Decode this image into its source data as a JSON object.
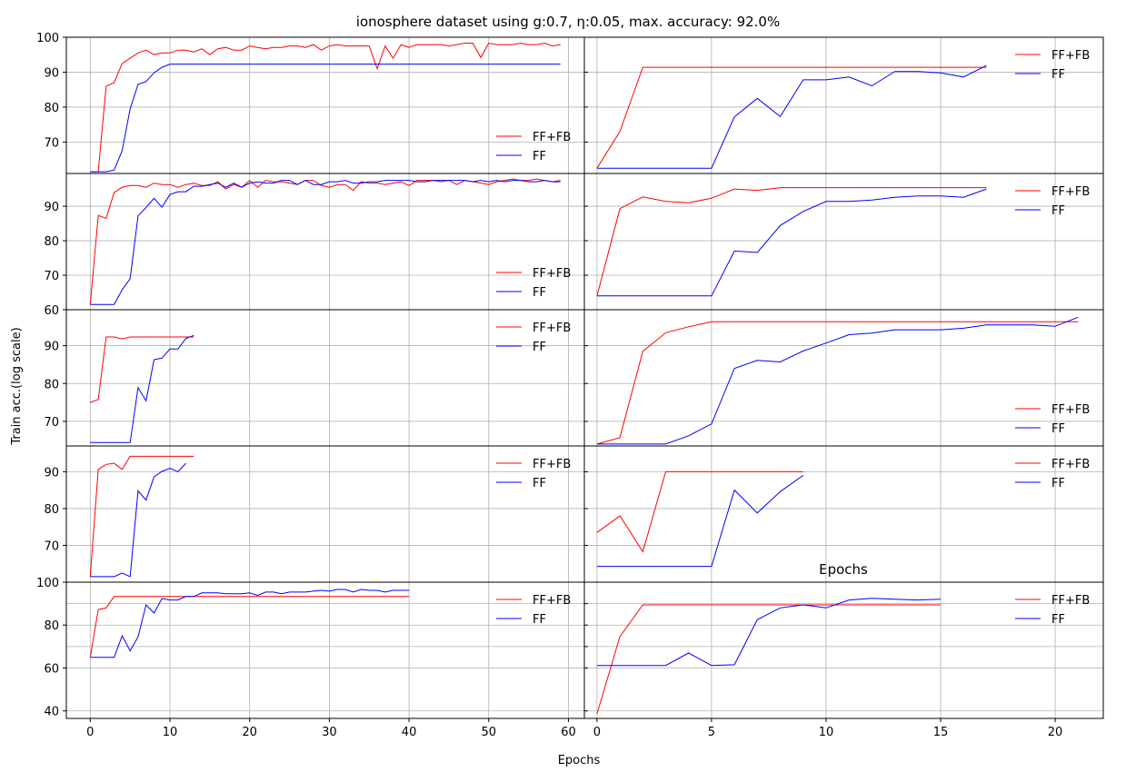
{
  "figure": {
    "title": "ionosphere dataset using g:0.7, η:0.05, max. accuracy: 92.0%",
    "xlabel": "Epochs",
    "ylabel": "Train acc.(log scale)",
    "stray_label": "Epochs",
    "colors": {
      "ff_fb": "#ff0000",
      "ff": "#0000ff",
      "grid": "#b0b0b0",
      "frame": "#000000"
    },
    "legend_labels": [
      "FF+FB",
      "FF"
    ]
  },
  "chart_data": [
    {
      "type": "line",
      "panel": "row1-left",
      "xlim": [
        -3,
        62
      ],
      "ylim": [
        61,
        100
      ],
      "yticks": [
        70,
        80,
        90,
        100
      ],
      "xticks": [
        0,
        10,
        20,
        30,
        40,
        50,
        60
      ],
      "grid": true,
      "legend": "lower-right",
      "series": [
        {
          "name": "FF+FB",
          "color": "#ff0000",
          "values": [
            61.5,
            61.5,
            86,
            87,
            92.5,
            94,
            95.5,
            96.3,
            95,
            95.5,
            95.5,
            96.3,
            96.3,
            95.8,
            96.7,
            95,
            96.7,
            97.1,
            96.3,
            96.3,
            97.5,
            97.1,
            96.7,
            97.1,
            97.1,
            97.5,
            97.5,
            97.1,
            97.9,
            96.3,
            97.5,
            97.9,
            97.5,
            97.5,
            97.5,
            97.5,
            91,
            97.5,
            94,
            97.9,
            97.1,
            97.9,
            97.9,
            97.9,
            97.9,
            97.5,
            97.9,
            98.3,
            98.3,
            94.2,
            98.3,
            97.9,
            97.9,
            97.9,
            98.3,
            97.9,
            97.9,
            98.3,
            97.5,
            97.9
          ]
        },
        {
          "name": "FF",
          "color": "#0000ff",
          "values": [
            61.5,
            61.5,
            61.5,
            62,
            67.5,
            79.5,
            86.5,
            87.3,
            89.8,
            91.4,
            92.3,
            92.3,
            92.3,
            92.3,
            92.3,
            92.3,
            92.3,
            92.3,
            92.3,
            92.3,
            92.3,
            92.3,
            92.3,
            92.3,
            92.3,
            92.3,
            92.3,
            92.3,
            92.3,
            92.3,
            92.3,
            92.3,
            92.3,
            92.3,
            92.3,
            92.3,
            92.3,
            92.3,
            92.3,
            92.3,
            92.3,
            92.3,
            92.3,
            92.3,
            92.3,
            92.3,
            92.3,
            92.3,
            92.3,
            92.3,
            92.3,
            92.3,
            92.3,
            92.3,
            92.3,
            92.3,
            92.3,
            92.3,
            92.3,
            92.3
          ]
        }
      ]
    },
    {
      "type": "line",
      "panel": "row1-right",
      "xlim": [
        -0.55,
        22.1
      ],
      "ylim": [
        61,
        100
      ],
      "yticks": [],
      "xticks": [
        0,
        5,
        10,
        15,
        20
      ],
      "grid": true,
      "legend": "upper-right",
      "series": [
        {
          "name": "FF+FB",
          "color": "#ff0000",
          "values": [
            62.5,
            73,
            91.4,
            91.4,
            91.4,
            91.4,
            91.4,
            91.4,
            91.4,
            91.4,
            91.4,
            91.4,
            91.4,
            91.4,
            91.4,
            91.4,
            91.4,
            91.4
          ]
        },
        {
          "name": "FF",
          "color": "#0000ff",
          "values": [
            62.5,
            62.5,
            62.5,
            62.5,
            62.5,
            62.5,
            77.2,
            82.5,
            77.3,
            87.8,
            87.8,
            88.6,
            86.1,
            90.2,
            90.2,
            89.8,
            88.6,
            91.9
          ]
        }
      ]
    },
    {
      "type": "line",
      "panel": "row2-left",
      "xlim": [
        -3,
        62
      ],
      "ylim": [
        60,
        99.5
      ],
      "yticks": [
        60,
        70,
        80,
        90
      ],
      "xticks": [
        0,
        10,
        20,
        30,
        40,
        50,
        60
      ],
      "grid": true,
      "legend": "lower-right",
      "series": [
        {
          "name": "FF+FB",
          "color": "#ff0000",
          "values": [
            61.5,
            87.3,
            86.5,
            94,
            95.5,
            96,
            96,
            95.5,
            96.7,
            96.3,
            96.3,
            95.5,
            96.3,
            96.7,
            96,
            96,
            97.1,
            95,
            96.3,
            95.5,
            97.5,
            95.5,
            97.5,
            97.1,
            97.1,
            96.7,
            96.3,
            97.5,
            97.5,
            96,
            95.5,
            96.3,
            96.3,
            94.6,
            97.1,
            96.7,
            96.7,
            96.3,
            96.7,
            97.1,
            96,
            97.5,
            97.5,
            97.5,
            97.1,
            97.5,
            96.3,
            97.5,
            97.1,
            96.7,
            96.3,
            97.1,
            97.5,
            97.9,
            97.5,
            97.5,
            97.9,
            97.5,
            97.1,
            97.5
          ]
        },
        {
          "name": "FF",
          "color": "#0000ff",
          "values": [
            61.5,
            61.5,
            61.5,
            61.5,
            65.8,
            69,
            87.2,
            89.6,
            92.3,
            89.7,
            93.4,
            94.2,
            94.2,
            95.8,
            95.8,
            96.3,
            96.7,
            95.5,
            96.7,
            95.5,
            96.7,
            97.1,
            96.7,
            96.7,
            97.5,
            97.5,
            96.3,
            97.5,
            96.3,
            96.3,
            97.1,
            97.1,
            97.5,
            96.7,
            96.7,
            97.1,
            97.1,
            97.5,
            97.5,
            97.5,
            97.5,
            97.1,
            97.1,
            97.5,
            97.5,
            97.5,
            97.5,
            97.5,
            97.1,
            97.5,
            97.1,
            97.5,
            97.1,
            97.5,
            97.5,
            97.1,
            97.1,
            97.5,
            97.1,
            97.1
          ]
        }
      ]
    },
    {
      "type": "line",
      "panel": "row2-right",
      "xlim": [
        -0.55,
        22.1
      ],
      "ylim": [
        60,
        99.5
      ],
      "yticks": [],
      "xticks": [
        0,
        5,
        10,
        15,
        20
      ],
      "grid": true,
      "legend": "upper-right",
      "series": [
        {
          "name": "FF+FB",
          "color": "#ff0000",
          "values": [
            64,
            89.3,
            92.7,
            91.4,
            91,
            92.3,
            95,
            94.6,
            95.4,
            95.4,
            95.4,
            95.4,
            95.4,
            95.4,
            95.4,
            95.4,
            95.4,
            95.4
          ]
        },
        {
          "name": "FF",
          "color": "#0000ff",
          "values": [
            64,
            64,
            64,
            64,
            64,
            64,
            77,
            76.6,
            84.4,
            88.5,
            91.4,
            91.4,
            91.8,
            92.6,
            93,
            93,
            92.6,
            95
          ]
        }
      ]
    },
    {
      "type": "line",
      "panel": "row3-left",
      "xlim": [
        -3,
        62
      ],
      "ylim": [
        63.5,
        99.5
      ],
      "yticks": [
        70,
        80,
        90
      ],
      "xticks": [
        0,
        10,
        20,
        30,
        40,
        50,
        60
      ],
      "grid": true,
      "legend": "upper-right",
      "series": [
        {
          "name": "FF+FB",
          "color": "#ff0000",
          "values": [
            75,
            75.8,
            92.3,
            92.3,
            91.8,
            92.3,
            92.3,
            92.3,
            92.3,
            92.3,
            92.3,
            92.3,
            92.3,
            92.3
          ]
        },
        {
          "name": "FF",
          "color": "#0000ff",
          "values": [
            64.4,
            64.4,
            64.4,
            64.4,
            64.4,
            64.4,
            78.9,
            75.4,
            86.3,
            86.7,
            89.1,
            89.1,
            91.9,
            92.7
          ]
        }
      ]
    },
    {
      "type": "line",
      "panel": "row3-right",
      "xlim": [
        -0.55,
        22.1
      ],
      "ylim": [
        63.5,
        99.5
      ],
      "yticks": [],
      "xticks": [
        0,
        5,
        10,
        15,
        20
      ],
      "grid": true,
      "legend": "lower-right",
      "series": [
        {
          "name": "FF+FB",
          "color": "#ff0000",
          "values": [
            64,
            65.7,
            88.5,
            93.4,
            95,
            96.3,
            96.3,
            96.3,
            96.3,
            96.3,
            96.3,
            96.3,
            96.3,
            96.3,
            96.3,
            96.3,
            96.3,
            96.3,
            96.3,
            96.3,
            96.3,
            96.3
          ]
        },
        {
          "name": "FF",
          "color": "#0000ff",
          "values": [
            64,
            64,
            64,
            64,
            66.2,
            69.3,
            84,
            86.1,
            85.7,
            88.6,
            90.7,
            92.9,
            93.3,
            94.2,
            94.2,
            94.2,
            94.6,
            95.5,
            95.5,
            95.5,
            95.1,
            97.5
          ]
        }
      ]
    },
    {
      "type": "line",
      "panel": "row4-left",
      "xlim": [
        -3,
        62
      ],
      "ylim": [
        60,
        97
      ],
      "yticks": [
        70,
        80,
        90
      ],
      "xticks": [
        0,
        10,
        20,
        30,
        40,
        50,
        60
      ],
      "grid": true,
      "legend": "upper-right",
      "series": [
        {
          "name": "FF+FB",
          "color": "#ff0000",
          "values": [
            61.5,
            90.6,
            92,
            92.3,
            90.6,
            94.2,
            94.2,
            94.2,
            94.2,
            94.2,
            94.2,
            94.2,
            94.2,
            94.2
          ]
        },
        {
          "name": "FF",
          "color": "#0000ff",
          "values": [
            61.5,
            61.5,
            61.5,
            61.5,
            62.5,
            61.5,
            84.8,
            82.3,
            88.6,
            90.1,
            90.9,
            90,
            92.3
          ]
        }
      ]
    },
    {
      "type": "line",
      "panel": "row4-right",
      "xlim": [
        -0.55,
        22.1
      ],
      "ylim": [
        60,
        97
      ],
      "yticks": [],
      "xticks": [
        0,
        5,
        10,
        15,
        20
      ],
      "grid": true,
      "legend": "upper-right",
      "series": [
        {
          "name": "FF+FB",
          "color": "#ff0000",
          "values": [
            73.5,
            78,
            68.3,
            90,
            90,
            90,
            90,
            90,
            90,
            90
          ]
        },
        {
          "name": "FF",
          "color": "#0000ff",
          "values": [
            64.3,
            64.3,
            64.3,
            64.3,
            64.3,
            64.3,
            85,
            78.8,
            84.6,
            89
          ]
        }
      ]
    },
    {
      "type": "line",
      "panel": "row5-left",
      "xlim": [
        -3,
        62
      ],
      "ylim": [
        36.5,
        100
      ],
      "yticks": [
        40,
        60,
        80,
        100
      ],
      "xticks": [
        0,
        10,
        20,
        30,
        40,
        50,
        60
      ],
      "grid": true,
      "legend": "upper-right",
      "series": [
        {
          "name": "FF+FB",
          "color": "#ff0000",
          "values": [
            65,
            87.2,
            88,
            93.3,
            93.3,
            93.3,
            93.3,
            93.3,
            93.3,
            93.3,
            93.3,
            93.3,
            93.3,
            93.3,
            93.3,
            93.3,
            93.3,
            93.3,
            93.3,
            93.3,
            93.3,
            93.3,
            93.3,
            93.3,
            93.3,
            93.3,
            93.3,
            93.3,
            93.3,
            93.3,
            93.3,
            93.3,
            93.3,
            93.3,
            93.3,
            93.3,
            93.3,
            93.3,
            93.3,
            93.3,
            93.3
          ]
        },
        {
          "name": "FF",
          "color": "#0000ff",
          "values": [
            65,
            65,
            65,
            65,
            75,
            68,
            74.5,
            89.4,
            85.6,
            92.4,
            91.7,
            91.7,
            93.3,
            93.3,
            95,
            95,
            95,
            94.6,
            94.6,
            94.6,
            95,
            93.8,
            95.4,
            95.4,
            94.6,
            95.4,
            95.4,
            95.4,
            95.8,
            96.2,
            95.8,
            96.6,
            96.6,
            95.4,
            96.6,
            96.2,
            96.2,
            95.4,
            96.2,
            96.2,
            96.2
          ]
        }
      ]
    },
    {
      "type": "line",
      "panel": "row5-right",
      "xlim": [
        -0.55,
        22.1
      ],
      "ylim": [
        36.5,
        100
      ],
      "yticks": [],
      "xticks": [
        0,
        5,
        10,
        15,
        20
      ],
      "grid": true,
      "legend": "upper-right",
      "series": [
        {
          "name": "FF+FB",
          "color": "#ff0000",
          "values": [
            38.6,
            74.6,
            89.4,
            89.4,
            89.4,
            89.4,
            89.4,
            89.4,
            89.4,
            89.4,
            89.4,
            89.4,
            89.4,
            89.4,
            89.4,
            89.4
          ]
        },
        {
          "name": "FF",
          "color": "#0000ff",
          "values": [
            61.2,
            61.2,
            61.2,
            61.2,
            67,
            61.2,
            61.5,
            82.5,
            88,
            89.4,
            88,
            91.7,
            92.5,
            92.1,
            91.7,
            92.1
          ]
        }
      ]
    }
  ]
}
